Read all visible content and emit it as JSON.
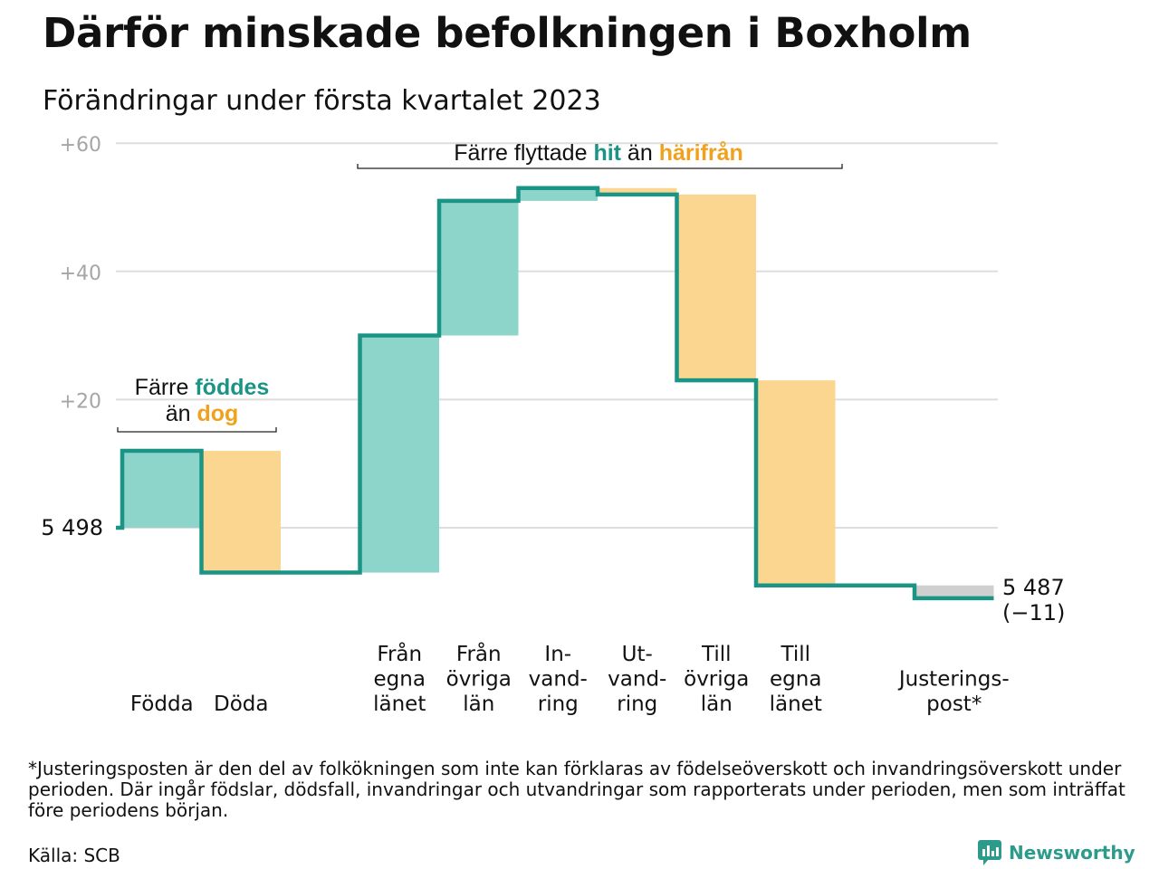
{
  "title": "Därför minskade befolkningen i Boxholm",
  "subtitle": "Förändringar under första kvartalet 2023",
  "footnote": "*Justeringsposten är den del av folkökningen som inte kan förklaras av födelseöverskott och invandringsöverskott under perioden. Där ingår födslar, dödsfall, invandringar och utvandringar som rapporterats under perioden, men som inträffat före periodens början.",
  "source": "Källa: SCB",
  "brand": "Newsworthy",
  "colors": {
    "increase": "#8dd4ca",
    "decrease": "#fbd690",
    "adjustment": "#cfcfcf",
    "line": "#1a9485",
    "teal_text": "#1a9485",
    "orange_text": "#f0a21e",
    "grid": "#dddddd"
  },
  "annotations": {
    "births": {
      "line1_prefix": "Färre ",
      "line1_highlight": "föddes",
      "line2_prefix": "än ",
      "line2_highlight": "dog"
    },
    "migration": {
      "prefix": "Färre flyttade ",
      "highlight1": "hit",
      "middle": " än ",
      "highlight2": "härifrån"
    }
  },
  "chart_data": {
    "type": "waterfall",
    "title": "Därför minskade befolkningen i Boxholm",
    "subtitle": "Förändringar under första kvartalet 2023",
    "start_value": 5498,
    "start_label": "5 498",
    "end_value": 5487,
    "end_label": "5 487",
    "end_change_label": "(−11)",
    "y_axis": {
      "ticks": [
        20,
        40,
        60
      ],
      "tick_labels": [
        "+20",
        "+40",
        "+60"
      ],
      "ylim": [
        -12,
        60
      ],
      "grid": true
    },
    "categories": [
      {
        "label": [
          "Födda"
        ],
        "value": 12,
        "kind": "increase"
      },
      {
        "label": [
          "Döda"
        ],
        "value": -19,
        "kind": "decrease"
      },
      {
        "label": [],
        "value": 0,
        "kind": "gap"
      },
      {
        "label": [
          "Från",
          "egna",
          "länet"
        ],
        "value": 37,
        "kind": "increase"
      },
      {
        "label": [
          "Från",
          "övriga",
          "län"
        ],
        "value": 21,
        "kind": "increase"
      },
      {
        "label": [
          "In-",
          "vand-",
          "ring"
        ],
        "value": 2,
        "kind": "increase"
      },
      {
        "label": [
          "Ut-",
          "vand-",
          "ring"
        ],
        "value": -1,
        "kind": "decrease"
      },
      {
        "label": [
          "Till",
          "övriga",
          "län"
        ],
        "value": -29,
        "kind": "decrease"
      },
      {
        "label": [
          "Till",
          "egna",
          "länet"
        ],
        "value": -32,
        "kind": "decrease"
      },
      {
        "label": [],
        "value": 0,
        "kind": "gap"
      },
      {
        "label": [
          "Justerings-",
          "post*"
        ],
        "value": -2,
        "kind": "adjustment"
      }
    ]
  }
}
